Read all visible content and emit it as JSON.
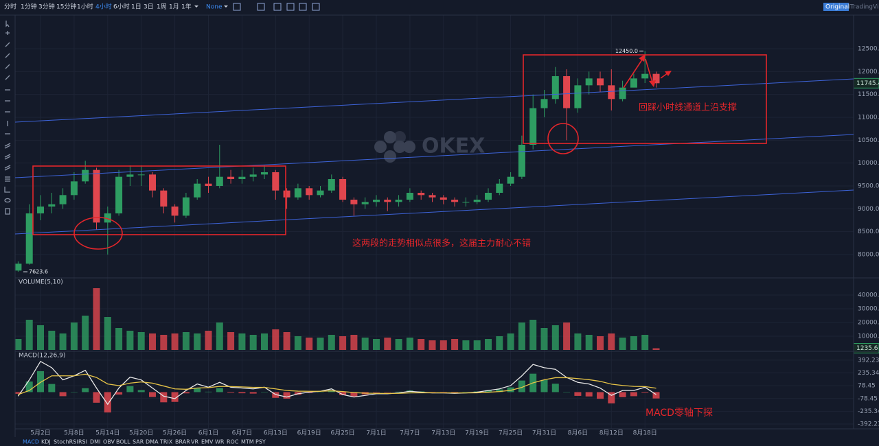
{
  "toolbar": {
    "intervals": [
      "分时",
      "1分钟",
      "3分钟",
      "15分钟",
      "1小时",
      "4小时",
      "6小时",
      "1日",
      "3日",
      "1周",
      "1月",
      "1年"
    ],
    "active": 5,
    "style": "None",
    "views": [
      "Original",
      "TradingView"
    ]
  },
  "indicator_tabs": [
    "MACD",
    "KDJ",
    "StochRSI",
    "RSI",
    "DMI",
    "OBV",
    "BOLL",
    "SAR",
    "DMA",
    "TRIX",
    "BRAR",
    "VR",
    "EMV",
    "WR",
    "ROC",
    "MTM",
    "PSY"
  ],
  "watermark": "OKEX",
  "chart_data": [
    {
      "type": "candlestick",
      "up_color": "#2e9d62",
      "down_color": "#e0464e",
      "categories": [
        null,
        null,
        "5月2日",
        null,
        null,
        "5月8日",
        null,
        null,
        "5月14日",
        null,
        null,
        "5月20日",
        null,
        null,
        "5月26日",
        null,
        null,
        "6月1日",
        null,
        null,
        "6月7日",
        null,
        null,
        "6月13日",
        null,
        null,
        "6月19日",
        null,
        null,
        "6月25日",
        null,
        null,
        "7月1日",
        null,
        null,
        "7月7日",
        null,
        null,
        "7月13日",
        null,
        null,
        "7月19日",
        null,
        null,
        "7月25日",
        null,
        null,
        "7月31日",
        null,
        null,
        "8月6日",
        null,
        null,
        "8月12日",
        null,
        null,
        "8月18日",
        null
      ],
      "open": [
        7650,
        7800,
        8900,
        9050,
        9100,
        9300,
        9600,
        9850,
        8700,
        8900,
        9700,
        9750,
        9750,
        9400,
        9050,
        8850,
        9250,
        9550,
        9500,
        9700,
        9650,
        9700,
        9750,
        9800,
        9400,
        9250,
        9450,
        9300,
        9400,
        9650,
        9200,
        9100,
        9150,
        9200,
        9150,
        9200,
        9350,
        9300,
        9250,
        9200,
        9150,
        9150,
        9200,
        9350,
        9550,
        9700,
        10400,
        11200,
        11400,
        11900,
        11200,
        11700,
        11850,
        11700,
        11400,
        11650,
        11850,
        11950
      ],
      "high": [
        7850,
        9100,
        9300,
        9350,
        9450,
        9800,
        10050,
        9900,
        9050,
        9850,
        9950,
        9950,
        9800,
        9450,
        9100,
        9350,
        9650,
        9700,
        10400,
        9850,
        9850,
        9900,
        9950,
        9850,
        9450,
        9550,
        9500,
        9500,
        9750,
        9700,
        9250,
        9250,
        9300,
        9250,
        9300,
        9450,
        9400,
        9350,
        9300,
        9250,
        9250,
        9300,
        9450,
        9650,
        9800,
        10600,
        11500,
        11600,
        12100,
        12050,
        11850,
        12000,
        12000,
        12050,
        11800,
        11950,
        12450,
        12000
      ],
      "low": [
        7623.6,
        7780,
        8750,
        8900,
        9000,
        9200,
        9550,
        8550,
        8000,
        8850,
        9500,
        9500,
        9250,
        8900,
        8700,
        8800,
        9200,
        9350,
        9450,
        9550,
        9550,
        9600,
        9650,
        9200,
        9000,
        9200,
        9200,
        9250,
        9350,
        9150,
        8850,
        9000,
        9050,
        8950,
        9050,
        9150,
        9200,
        9150,
        9100,
        9050,
        9050,
        9100,
        9150,
        9300,
        9500,
        9650,
        10300,
        11000,
        11300,
        10500,
        11100,
        11500,
        11550,
        11150,
        11350,
        11700,
        11750,
        11650
      ],
      "close": [
        7800,
        8900,
        9050,
        9100,
        9300,
        9600,
        9850,
        8700,
        8900,
        9700,
        9750,
        9750,
        9400,
        9050,
        8850,
        9250,
        9550,
        9500,
        9700,
        9650,
        9700,
        9750,
        9800,
        9400,
        9250,
        9450,
        9300,
        9400,
        9650,
        9200,
        9100,
        9150,
        9200,
        9150,
        9200,
        9350,
        9300,
        9250,
        9200,
        9150,
        9150,
        9200,
        9350,
        9550,
        9700,
        10400,
        11200,
        11400,
        11900,
        11200,
        11700,
        11850,
        11700,
        11400,
        11650,
        11850,
        11950,
        11745.4
      ],
      "ylim": [
        7490,
        13235
      ],
      "yticks": [
        {
          "value": 8000,
          "label": "8000.0"
        },
        {
          "value": 8500,
          "label": "8500.0"
        },
        {
          "value": 9000,
          "label": "9000.0"
        },
        {
          "value": 9500,
          "label": "9500.0"
        },
        {
          "value": 10000,
          "label": "10000.0"
        },
        {
          "value": 10500,
          "label": "10500.0"
        },
        {
          "value": 11000,
          "label": "11000.0"
        },
        {
          "value": 11500,
          "label": "11500.0"
        },
        {
          "value": 12000,
          "label": "12000.0"
        },
        {
          "value": 12500,
          "label": "12500.0"
        }
      ],
      "markers": [
        {
          "value": 12450,
          "label": "12450.0"
        },
        {
          "value": 7623.6,
          "label": "7623.6"
        }
      ],
      "annotations": [
        "这两段的走势相似点很多，这届主力耐心不错",
        "回踩小时线通道上沿支撑"
      ],
      "grid": true
    },
    {
      "type": "bar",
      "title": "VOLUME(5,10)",
      "values": [
        8000,
        22000,
        18000,
        14000,
        12000,
        20000,
        25000,
        45000,
        24000,
        16000,
        14000,
        13000,
        12000,
        11000,
        12000,
        13000,
        12000,
        14000,
        20000,
        13000,
        12000,
        11000,
        12000,
        15000,
        13000,
        10000,
        9000,
        9000,
        11000,
        10000,
        11000,
        9000,
        8000,
        9000,
        8000,
        9000,
        8000,
        7000,
        7000,
        8000,
        7000,
        7000,
        8000,
        10000,
        12000,
        20000,
        22000,
        16000,
        18000,
        20000,
        12000,
        11000,
        10000,
        12000,
        9000,
        10000,
        11000,
        1235.6
      ],
      "ylim": [
        -1000,
        52500
      ],
      "yticks": [
        {
          "value": 10000,
          "label": "10000.00"
        },
        {
          "value": 20000,
          "label": "20000.00"
        },
        {
          "value": 30000,
          "label": "30000.00"
        },
        {
          "value": 40000,
          "label": "40000.00"
        }
      ],
      "grid": true
    },
    {
      "type": "macd",
      "title": "MACD(12,26,9)",
      "series": [
        {
          "name": "DIF",
          "color": "#e8e8e8",
          "values": [
            -50,
            150,
            377,
            300,
            150,
            200,
            268,
            50,
            -150,
            50,
            184,
            150,
            50,
            -50,
            -80,
            20,
            100,
            60,
            120,
            60,
            50,
            40,
            60,
            -30,
            -60,
            -20,
            0,
            10,
            40,
            -30,
            -60,
            -40,
            -20,
            -20,
            -10,
            10,
            0,
            -10,
            -10,
            -15,
            -10,
            0,
            20,
            40,
            80,
            200,
            340,
            300,
            280,
            180,
            120,
            100,
            50,
            -40,
            20,
            20,
            60,
            -30
          ]
        },
        {
          "name": "DEA",
          "color": "#e8c547",
          "values": [
            -30,
            20,
            120,
            200,
            200,
            200,
            220,
            180,
            100,
            80,
            110,
            125,
            110,
            75,
            40,
            35,
            50,
            55,
            70,
            68,
            64,
            58,
            58,
            40,
            20,
            12,
            10,
            10,
            16,
            7,
            -6,
            -13,
            -15,
            -16,
            -15,
            -10,
            -8,
            -8,
            -9,
            -10,
            -10,
            -8,
            -2,
            7,
            22,
            58,
            114,
            151,
            177,
            178,
            166,
            153,
            132,
            98,
            82,
            70,
            68,
            48
          ]
        }
      ],
      "histogram": [
        -20,
        130,
        257,
        100,
        -50,
        0,
        48,
        -130,
        -250,
        -30,
        74,
        25,
        -60,
        -125,
        -120,
        -15,
        50,
        5,
        50,
        -8,
        -14,
        -18,
        2,
        -70,
        -80,
        -32,
        -10,
        0,
        24,
        -37,
        -54,
        -27,
        -5,
        -4,
        5,
        20,
        8,
        -2,
        -1,
        -5,
        0,
        8,
        22,
        33,
        58,
        142,
        226,
        149,
        103,
        2,
        -46,
        -53,
        -82,
        -138,
        -62,
        -50,
        -8,
        -78
      ],
      "ylim": [
        -451,
        501
      ],
      "yticks": [
        392.23,
        235.34,
        78.45,
        -78.45,
        -235.34,
        -392.23
      ],
      "annotations": [
        "MACD零轴下探"
      ],
      "grid": true
    }
  ]
}
